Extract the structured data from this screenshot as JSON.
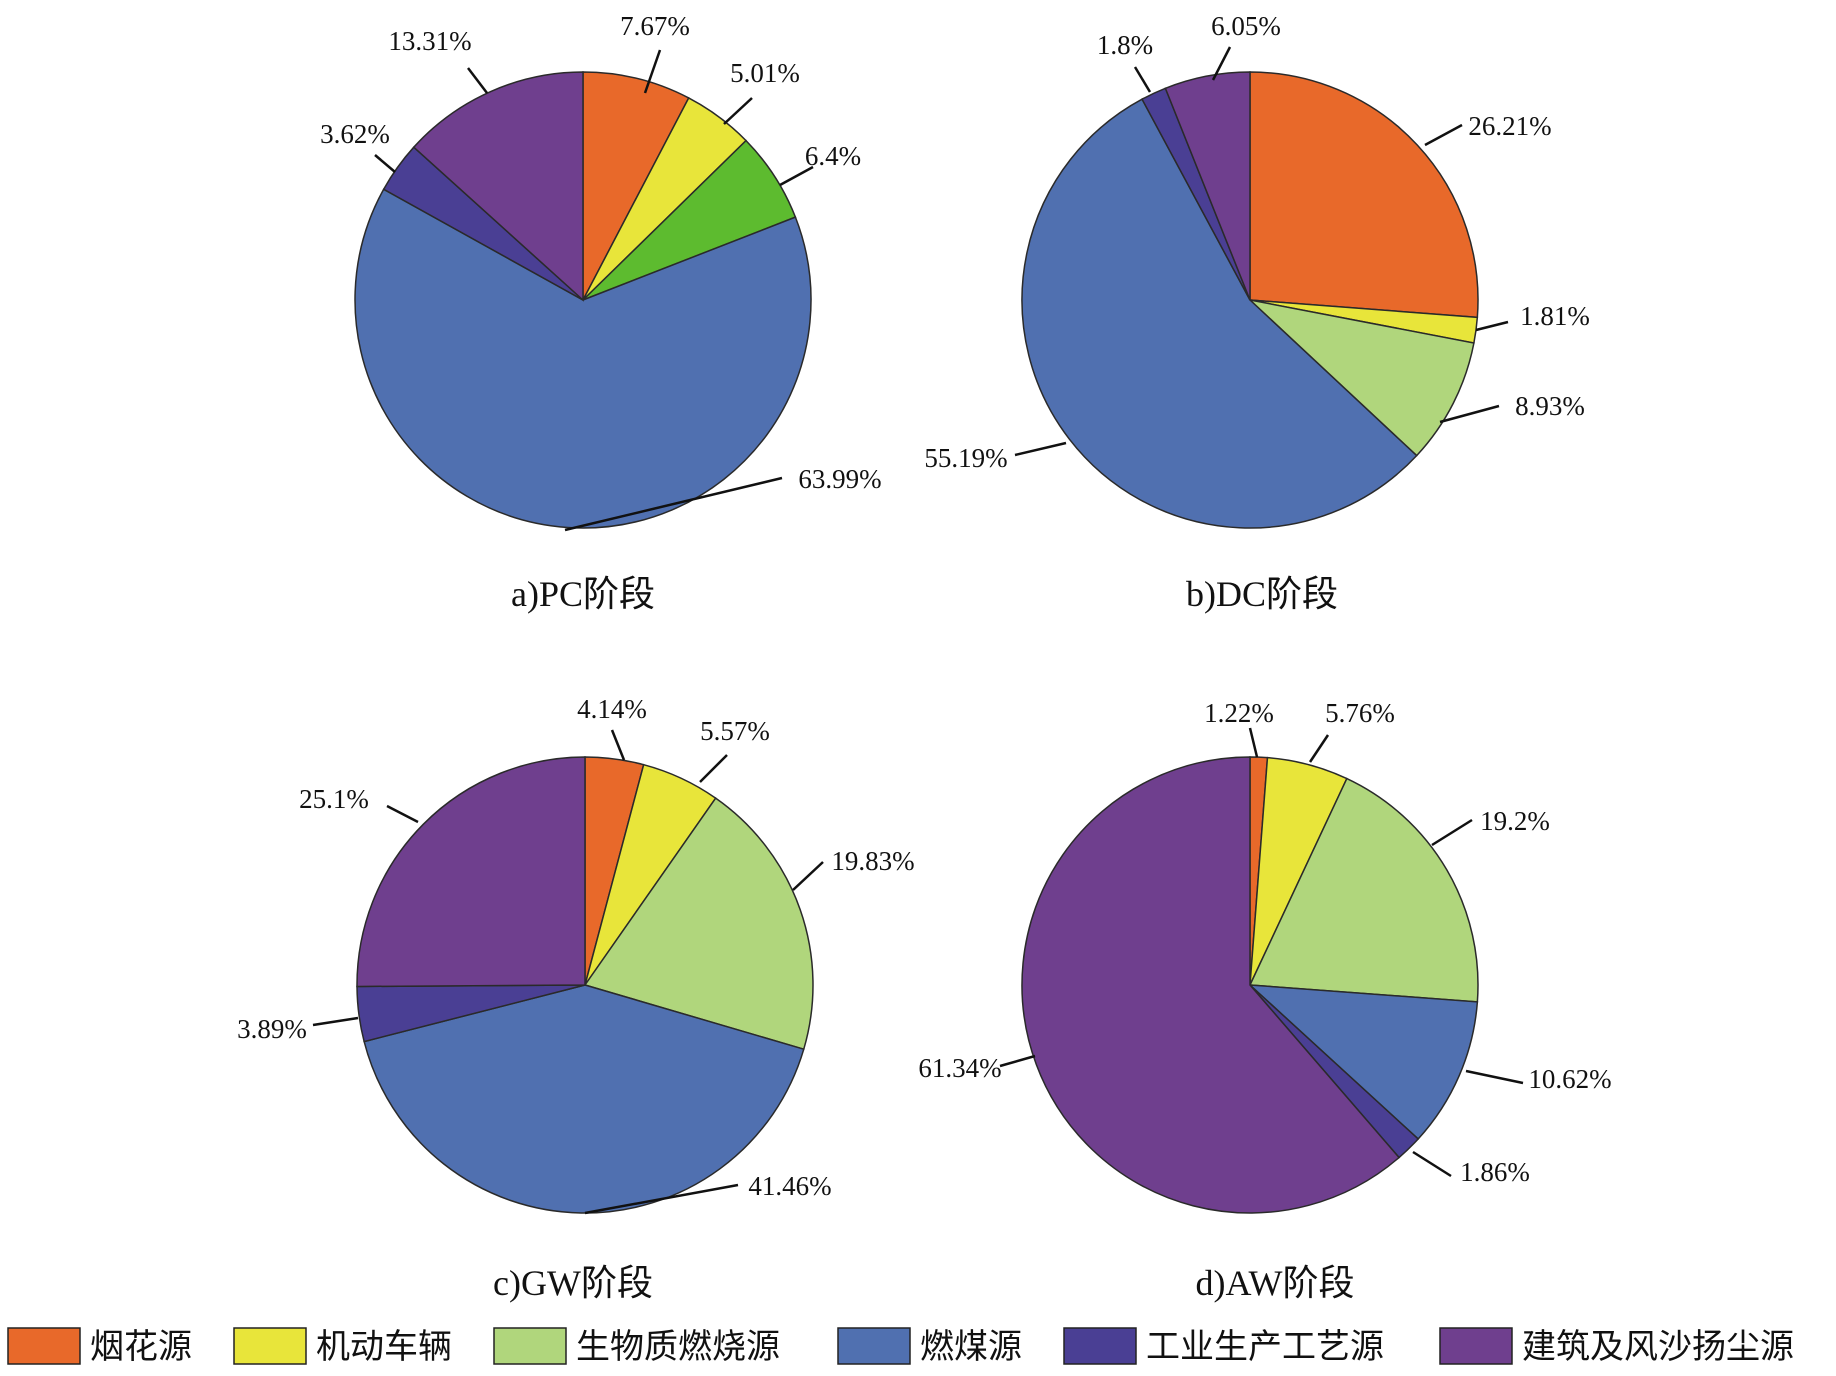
{
  "colors": {
    "烟花源": "#E8692A",
    "机动车辆": "#E8E53A",
    "生物质燃烧源": "#B0D67C",
    "生物质燃烧源_pc": "#5DBB2F",
    "燃煤源": "#5070B0",
    "工业生产工艺源": "#4A3F94",
    "建筑及风沙扬尘源": "#6F3F8E"
  },
  "legend": {
    "items": [
      {
        "label": "烟花源",
        "color": "#E8692A"
      },
      {
        "label": "机动车辆",
        "color": "#E8E53A"
      },
      {
        "label": "生物质燃烧源",
        "color": "#B0D67C"
      },
      {
        "label": "燃煤源",
        "color": "#5070B0"
      },
      {
        "label": "工业生产工艺源",
        "color": "#4A3F94"
      },
      {
        "label": "建筑及风沙扬尘源",
        "color": "#6F3F8E"
      }
    ]
  },
  "chart_data": [
    {
      "type": "pie",
      "title": "a)PC阶段",
      "slices": [
        {
          "name": "烟花源",
          "value": 7.67,
          "label": "7.67%"
        },
        {
          "name": "机动车辆",
          "value": 5.01,
          "label": "5.01%"
        },
        {
          "name": "生物质燃烧源",
          "value": 6.4,
          "label": "6.4%"
        },
        {
          "name": "燃煤源",
          "value": 63.99,
          "label": "63.99%"
        },
        {
          "name": "工业生产工艺源",
          "value": 3.62,
          "label": "3.62%"
        },
        {
          "name": "建筑及风沙扬尘源",
          "value": 13.31,
          "label": "13.31%"
        }
      ]
    },
    {
      "type": "pie",
      "title": "b)DC阶段",
      "slices": [
        {
          "name": "烟花源",
          "value": 26.21,
          "label": "26.21%"
        },
        {
          "name": "机动车辆",
          "value": 1.81,
          "label": "1.81%"
        },
        {
          "name": "生物质燃烧源",
          "value": 8.93,
          "label": "8.93%"
        },
        {
          "name": "燃煤源",
          "value": 55.19,
          "label": "55.19%"
        },
        {
          "name": "工业生产工艺源",
          "value": 1.8,
          "label": "1.8%"
        },
        {
          "name": "建筑及风沙扬尘源",
          "value": 6.05,
          "label": "6.05%"
        }
      ]
    },
    {
      "type": "pie",
      "title": "c)GW阶段",
      "slices": [
        {
          "name": "烟花源",
          "value": 4.14,
          "label": "4.14%"
        },
        {
          "name": "机动车辆",
          "value": 5.57,
          "label": "5.57%"
        },
        {
          "name": "生物质燃烧源",
          "value": 19.83,
          "label": "19.83%"
        },
        {
          "name": "燃煤源",
          "value": 41.46,
          "label": "41.46%"
        },
        {
          "name": "工业生产工艺源",
          "value": 3.89,
          "label": "3.89%"
        },
        {
          "name": "建筑及风沙扬尘源",
          "value": 25.1,
          "label": "25.1%"
        }
      ]
    },
    {
      "type": "pie",
      "title": "d)AW阶段",
      "slices": [
        {
          "name": "烟花源",
          "value": 1.22,
          "label": "1.22%"
        },
        {
          "name": "机动车辆",
          "value": 5.76,
          "label": "5.76%"
        },
        {
          "name": "生物质燃烧源",
          "value": 19.2,
          "label": "19.2%"
        },
        {
          "name": "燃煤源",
          "value": 10.62,
          "label": "10.62%"
        },
        {
          "name": "工业生产工艺源",
          "value": 1.86,
          "label": "1.86%"
        },
        {
          "name": "建筑及风沙扬尘源",
          "value": 61.34,
          "label": "61.34%"
        }
      ]
    }
  ]
}
